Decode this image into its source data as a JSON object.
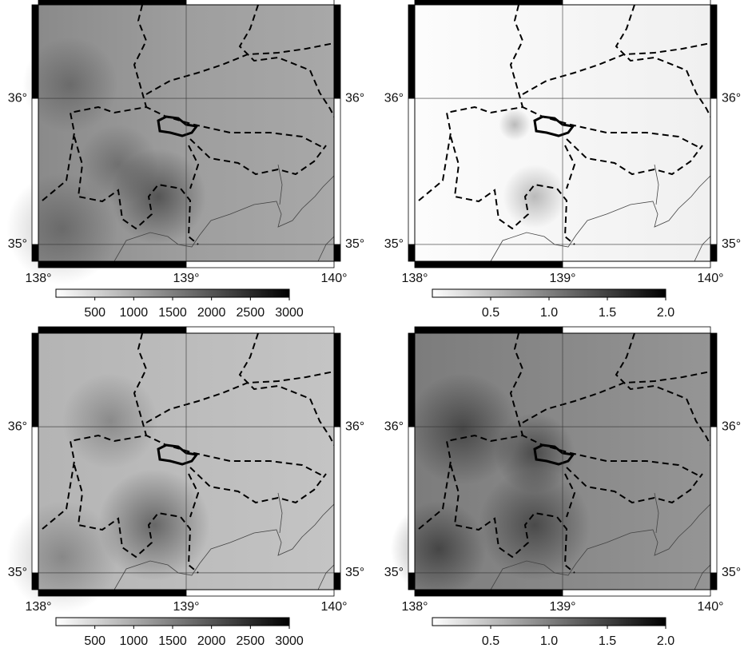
{
  "panels": [
    {
      "lon_range": [
        138,
        140
      ],
      "lat_range": [
        34.885,
        36.64
      ],
      "lon_ticks": [
        {
          "value": 138,
          "label": "138°"
        },
        {
          "value": 139,
          "label": "139°"
        },
        {
          "value": 140,
          "label": "140°"
        }
      ],
      "lat_ticks": [
        {
          "value": 35,
          "label": "35°"
        },
        {
          "value": 36,
          "label": "36°"
        }
      ],
      "colorbar": {
        "range": [
          0,
          3000
        ],
        "ticks": [
          500,
          1000,
          1500,
          2000,
          2500,
          3000
        ]
      }
    },
    {
      "lon_range": [
        138,
        140
      ],
      "lat_range": [
        34.885,
        36.64
      ],
      "lon_ticks": [
        {
          "value": 138,
          "label": "138°"
        },
        {
          "value": 139,
          "label": "139°"
        },
        {
          "value": 140,
          "label": "140°"
        }
      ],
      "lat_ticks": [
        {
          "value": 35,
          "label": "35°"
        },
        {
          "value": 36,
          "label": "36°"
        }
      ],
      "colorbar": {
        "range": [
          0,
          2
        ],
        "ticks": [
          0.5,
          {
            "value": 1,
            "label": "1.0"
          },
          1.5,
          {
            "value": 2,
            "label": "2.0"
          }
        ]
      }
    },
    {
      "lon_range": [
        138,
        140
      ],
      "lat_range": [
        34.885,
        36.64
      ],
      "lon_ticks": [
        {
          "value": 138,
          "label": "138°"
        },
        {
          "value": 139,
          "label": "139°"
        },
        {
          "value": 140,
          "label": "140°"
        }
      ],
      "lat_ticks": [
        {
          "value": 35,
          "label": "35°"
        },
        {
          "value": 36,
          "label": "36°"
        }
      ],
      "colorbar": {
        "range": [
          0,
          3000
        ],
        "ticks": [
          500,
          1000,
          1500,
          2000,
          2500,
          3000
        ]
      }
    },
    {
      "lon_range": [
        138,
        140
      ],
      "lat_range": [
        34.885,
        36.64
      ],
      "lon_ticks": [
        {
          "value": 138,
          "label": "138°"
        },
        {
          "value": 139,
          "label": "139°"
        },
        {
          "value": 140,
          "label": "140°"
        }
      ],
      "lat_ticks": [
        {
          "value": 35,
          "label": "35°"
        },
        {
          "value": 36,
          "label": "36°"
        }
      ],
      "colorbar": {
        "range": [
          0,
          2
        ],
        "ticks": [
          0.5,
          {
            "value": 1,
            "label": "1.0"
          },
          1.5,
          {
            "value": 2,
            "label": "2.0"
          }
        ]
      }
    }
  ]
}
